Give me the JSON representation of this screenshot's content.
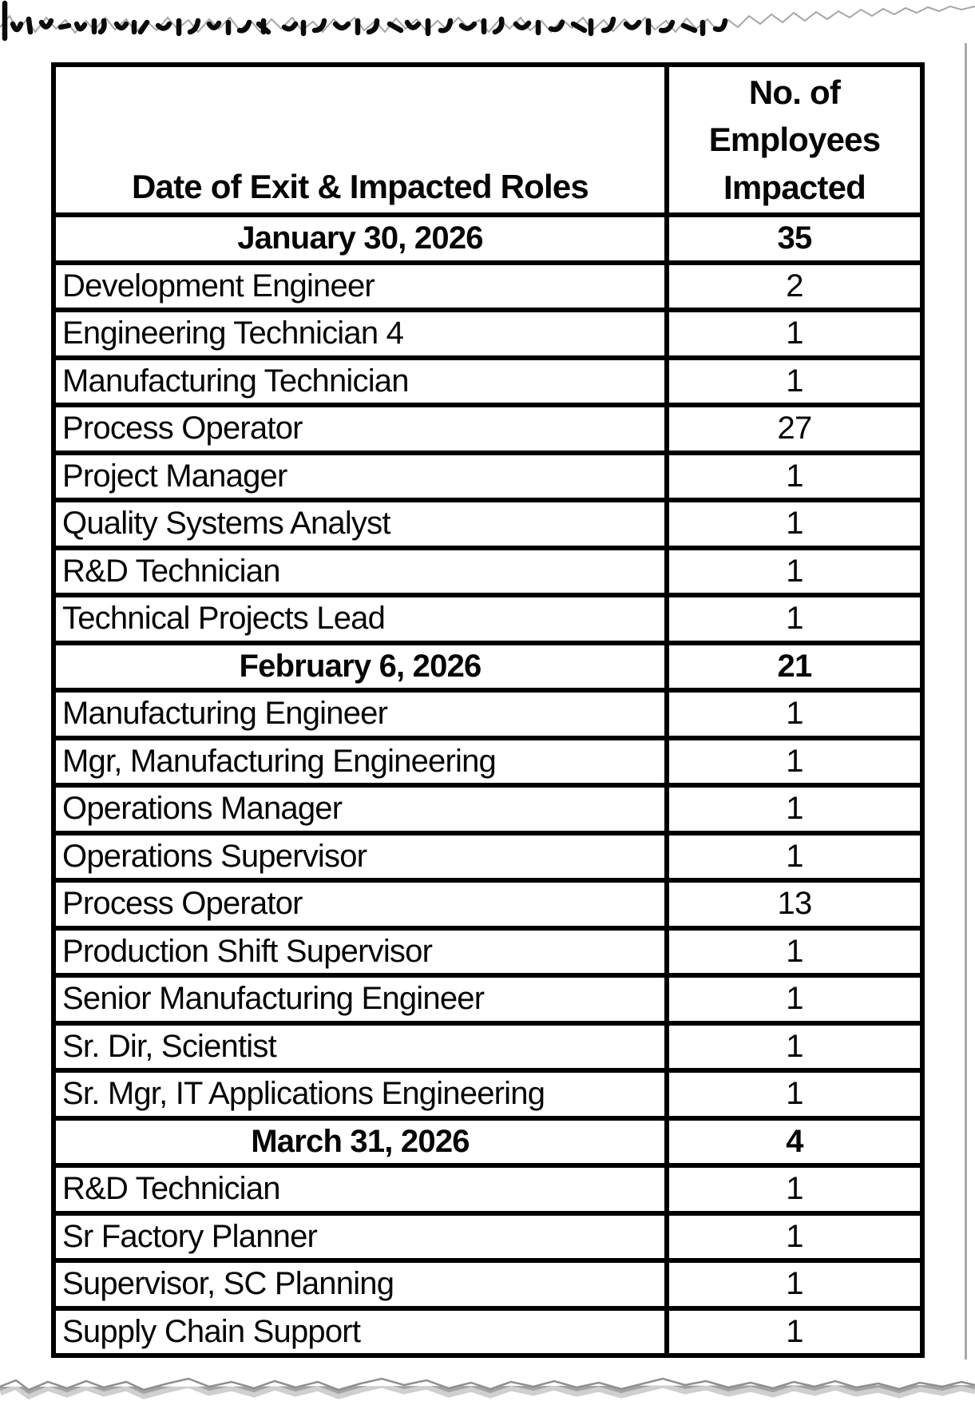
{
  "document": {
    "page_background": "#ffffff",
    "border_color": "#000000",
    "table": {
      "columns": [
        "Date of Exit & Impacted Roles",
        "No. of Employees Impacted"
      ],
      "rows": [
        {
          "type": "group",
          "label": "January 30, 2026",
          "value": "35"
        },
        {
          "type": "role",
          "label": "Development Engineer",
          "value": "2"
        },
        {
          "type": "role",
          "label": "Engineering Technician 4",
          "value": "1"
        },
        {
          "type": "role",
          "label": "Manufacturing Technician",
          "value": "1"
        },
        {
          "type": "role",
          "label": "Process Operator",
          "value": "27"
        },
        {
          "type": "role",
          "label": "Project Manager",
          "value": "1"
        },
        {
          "type": "role",
          "label": "Quality Systems Analyst",
          "value": "1"
        },
        {
          "type": "role",
          "label": "R&D Technician",
          "value": "1"
        },
        {
          "type": "role",
          "label": "Technical Projects Lead",
          "value": "1"
        },
        {
          "type": "group",
          "label": "February 6, 2026",
          "value": "21"
        },
        {
          "type": "role",
          "label": "Manufacturing Engineer",
          "value": "1"
        },
        {
          "type": "role",
          "label": "Mgr, Manufacturing Engineering",
          "value": "1"
        },
        {
          "type": "role",
          "label": "Operations Manager",
          "value": "1"
        },
        {
          "type": "role",
          "label": "Operations Supervisor",
          "value": "1"
        },
        {
          "type": "role",
          "label": "Process Operator",
          "value": "13"
        },
        {
          "type": "role",
          "label": "Production Shift Supervisor",
          "value": "1"
        },
        {
          "type": "role",
          "label": "Senior Manufacturing Engineer",
          "value": "1"
        },
        {
          "type": "role",
          "label": "Sr. Dir, Scientist",
          "value": "1"
        },
        {
          "type": "role",
          "label": "Sr. Mgr, IT Applications Engineering",
          "value": "1"
        },
        {
          "type": "group",
          "label": "March 31, 2026",
          "value": "4"
        },
        {
          "type": "role",
          "label": "R&D Technician",
          "value": "1"
        },
        {
          "type": "role",
          "label": "Sr Factory Planner",
          "value": "1"
        },
        {
          "type": "role",
          "label": "Supervisor, SC Planning",
          "value": "1"
        },
        {
          "type": "role",
          "label": "Supply Chain Support",
          "value": "1"
        }
      ]
    }
  }
}
